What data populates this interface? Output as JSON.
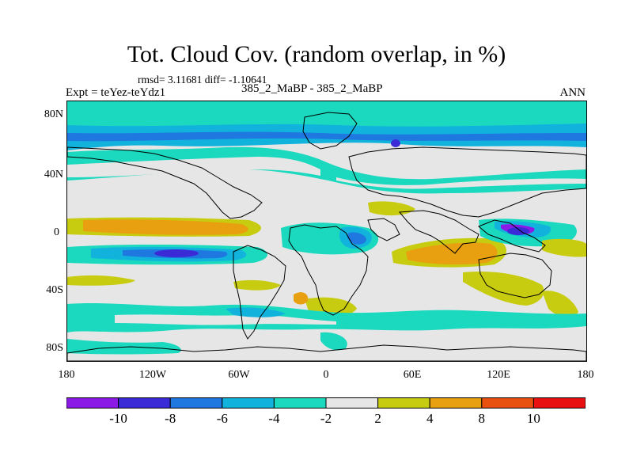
{
  "title": "Tot. Cloud Cov. (random overlap, in %)",
  "stats": "rmsd= 3.11681 diff= -1.10641",
  "expt_label": "Expt = teYez-teYdz1",
  "center_label": "385_2_MaBP - 385_2_MaBP",
  "season": "ANN",
  "y_ticks": [
    "80N",
    "40N",
    "0",
    "40S",
    "80S"
  ],
  "x_ticks": [
    "180",
    "120W",
    "60W",
    "0",
    "60E",
    "120E",
    "180"
  ],
  "colorbar": {
    "labels": [
      "-10",
      "-8",
      "-6",
      "-4",
      "-2",
      "2",
      "4",
      "8",
      "10"
    ],
    "colors": [
      "#8b1ae6",
      "#3a2bd6",
      "#1f77e0",
      "#11b3dd",
      "#1ad9be",
      "#e6e6e6",
      "#c8cc10",
      "#e8a010",
      "#e85010",
      "#e81010"
    ]
  },
  "chart_data": {
    "type": "heatmap",
    "title": "Tot. Cloud Cov. (random overlap, in %)",
    "xlabel": "",
    "ylabel": "",
    "x_range": [
      -180,
      180
    ],
    "y_range": [
      -90,
      90
    ],
    "levels": [
      -10,
      -8,
      -6,
      -4,
      -2,
      2,
      4,
      8,
      10
    ],
    "features": [
      {
        "lon_range": [
          -180,
          180
        ],
        "lat_range": [
          70,
          90
        ],
        "value": -3
      },
      {
        "lon_range": [
          -180,
          180
        ],
        "lat_range": [
          55,
          70
        ],
        "value": -5
      },
      {
        "lon_range": [
          -180,
          180
        ],
        "lat_range": [
          35,
          55
        ],
        "value": -3
      },
      {
        "lon_range": [
          -150,
          -80
        ],
        "lat_range": [
          0,
          8
        ],
        "value": 5
      },
      {
        "lon_range": [
          -130,
          -80
        ],
        "lat_range": [
          -18,
          -8
        ],
        "value": -8
      },
      {
        "lon_range": [
          60,
          100
        ],
        "lat_range": [
          -20,
          -5
        ],
        "value": 5
      },
      {
        "lon_range": [
          110,
          140
        ],
        "lat_range": [
          -5,
          5
        ],
        "value": -9
      },
      {
        "lon_range": [
          -180,
          180
        ],
        "lat_range": [
          -65,
          -50
        ],
        "value": -3
      }
    ]
  }
}
